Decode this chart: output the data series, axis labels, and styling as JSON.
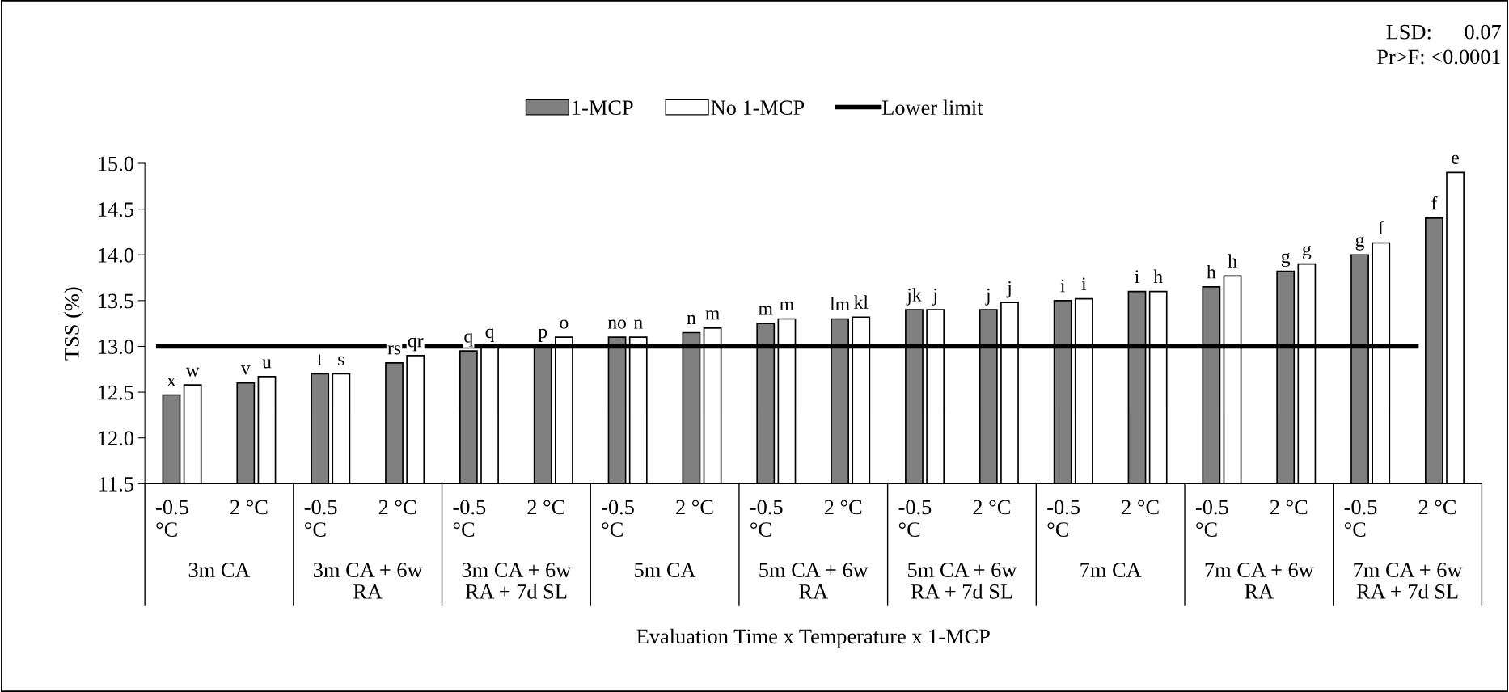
{
  "chart_data": {
    "type": "bar",
    "ylabel": "TSS (%)",
    "xlabel": "Evaluation Time x Temperature x 1-MCP",
    "categories": [
      "-0.5 °C",
      "2 °C",
      "-0.5 °C",
      "2 °C",
      "-0.5 °C",
      "2 °C",
      "-0.5 °C",
      "2 °C",
      "-0.5 °C",
      "2 °C",
      "-0.5 °C",
      "2 °C",
      "-0.5 °C",
      "2 °C",
      "-0.5 °C",
      "2 °C",
      "-0.5 °C",
      "2 °C"
    ],
    "series": [
      {
        "name": "1-MCP",
        "color": "#808080",
        "values": [
          12.47,
          12.6,
          12.7,
          12.82,
          12.95,
          13.0,
          13.1,
          13.15,
          13.25,
          13.3,
          13.4,
          13.4,
          13.5,
          13.6,
          13.65,
          13.82,
          14.0,
          14.4
        ],
        "value_labels": [
          "x",
          "v",
          "t",
          "rs",
          "q",
          "p",
          "no",
          "n",
          "m",
          "lm",
          "jk",
          "j",
          "i",
          "i",
          "h",
          "g",
          "g",
          "f"
        ]
      },
      {
        "name": "No 1-MCP",
        "color": "#ffffff",
        "values": [
          12.58,
          12.67,
          12.7,
          12.9,
          13.0,
          13.1,
          13.1,
          13.2,
          13.3,
          13.32,
          13.4,
          13.48,
          13.52,
          13.6,
          13.77,
          13.9,
          14.13,
          14.9
        ],
        "value_labels": [
          "w",
          "u",
          "s",
          "qr",
          "q",
          "o",
          "n",
          "m",
          "m",
          "kl",
          "j",
          "j",
          "i",
          "h",
          "h",
          "g",
          "f",
          "e"
        ]
      }
    ],
    "ref_lines": [
      {
        "axis": "y",
        "value": 13.0,
        "label": "Lower limit",
        "color": "#000000"
      }
    ],
    "ylim": [
      11.5,
      15.0
    ],
    "yticks": [
      {
        "value": 11.5,
        "label": "11.5"
      },
      {
        "value": 12.0,
        "label": "12.0"
      },
      {
        "value": 12.5,
        "label": "12.5"
      },
      {
        "value": 13.0,
        "label": "13.0"
      },
      {
        "value": 13.5,
        "label": "13.5"
      },
      {
        "value": 14.0,
        "label": "14.0"
      },
      {
        "value": 14.5,
        "label": "14.5"
      },
      {
        "value": 15.0,
        "label": "15.0"
      }
    ],
    "grid": false,
    "legend": "top",
    "annotations": [
      "LSD:      0.07",
      "Pr>F: <0.0001",
      "3m CA",
      "3m CA + 6w RA",
      "3m CA + 6w RA + 7d SL",
      "5m CA",
      "5m CA + 6w RA",
      "5m CA + 6w RA + 7d SL",
      "7m CA",
      "7m CA + 6w RA",
      "7m CA + 6w RA + 7d SL"
    ]
  }
}
